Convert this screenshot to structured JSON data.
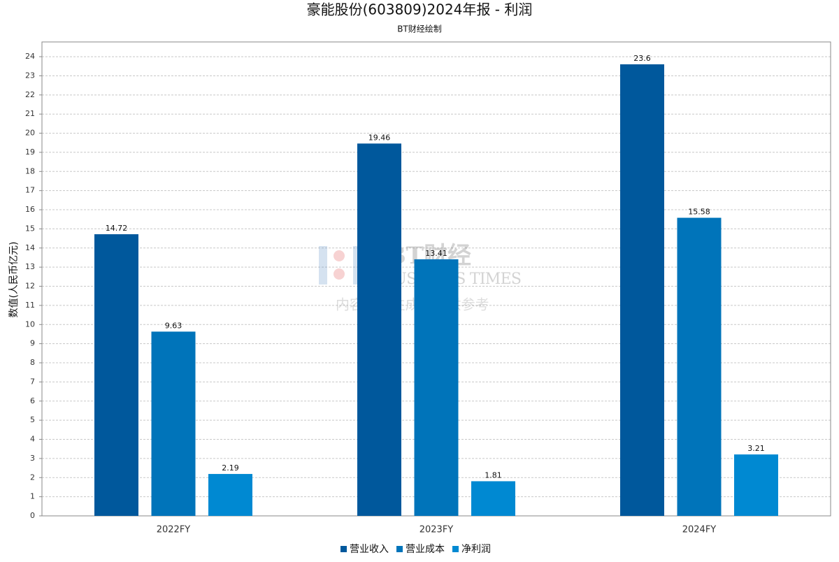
{
  "chart_data": {
    "type": "bar",
    "title": "豪能股份(603809)2024年报 - 利润",
    "subtitle": "BT财经绘制",
    "y_label": "数值(人民币亿元)",
    "watermark": [
      "BT财经",
      "BUSINESS TIMES",
      "内容由AI生成，仅供参考"
    ],
    "categories": [
      "2022FY",
      "2023FY",
      "2024FY"
    ],
    "series": [
      {
        "name": "营业收入",
        "color": "#00589c",
        "values": [
          14.72,
          19.46,
          23.6
        ]
      },
      {
        "name": "营业成本",
        "color": "#0074ba",
        "values": [
          9.63,
          13.41,
          15.58
        ]
      },
      {
        "name": "净利润",
        "color": "#0089d2",
        "values": [
          2.19,
          1.81,
          3.21
        ]
      }
    ],
    "ylim": [
      0,
      24.77
    ],
    "yticks": [
      0,
      1,
      2,
      3,
      4,
      5,
      6,
      7,
      8,
      9,
      10,
      11,
      12,
      13,
      14,
      15,
      16,
      17,
      18,
      19,
      20,
      21,
      22,
      23,
      24
    ],
    "grid": true,
    "legend": "bottom"
  }
}
